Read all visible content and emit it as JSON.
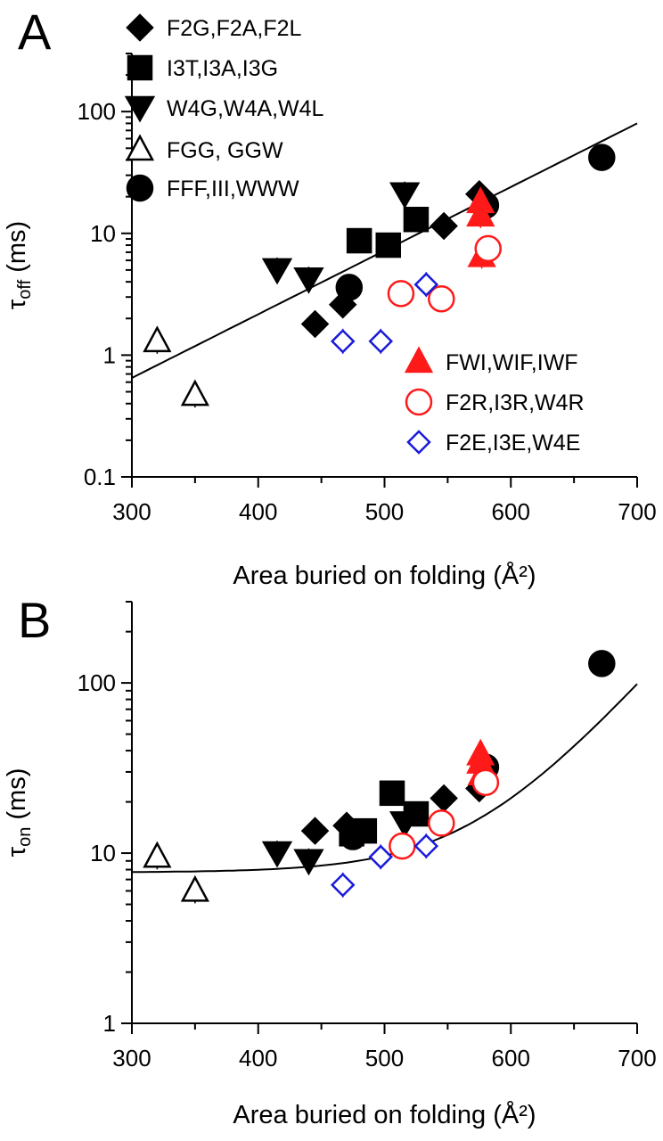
{
  "colors": {
    "black": "#000000",
    "red": "#ff1a1a",
    "blue": "#1a1adb"
  },
  "chart_data": [
    {
      "panel": "A",
      "type": "scatter",
      "xlabel": "Area buried on folding (Å²)",
      "ylabel": "τ",
      "ylabel_sub": "off",
      "ylabel_unit": " (ms)",
      "xlim": [
        300,
        700
      ],
      "ylim": [
        0.1,
        300
      ],
      "yscale": "log",
      "x_ticks": [
        300,
        400,
        500,
        600,
        700
      ],
      "y_ticks": [
        0.1,
        1,
        10,
        100
      ],
      "y_tick_labels": [
        "0.1",
        "1",
        "10",
        "100"
      ],
      "fit": {
        "type": "exponential",
        "x": [
          300,
          700
        ],
        "y": [
          0.65,
          80
        ]
      },
      "series": [
        {
          "name": "F2G,F2A,F2L",
          "marker": "diamond",
          "color": "black",
          "filled": true,
          "points": [
            [
              445,
              1.8
            ],
            [
              467,
              2.6
            ],
            [
              547,
              11.5
            ],
            [
              575,
              21
            ]
          ]
        },
        {
          "name": "I3T,I3A,I3G",
          "marker": "square",
          "color": "black",
          "filled": true,
          "points": [
            [
              480,
              8.7
            ],
            [
              503,
              8.0
            ],
            [
              525,
              13.0
            ]
          ]
        },
        {
          "name": "W4G,W4A,W4L",
          "marker": "triangle-down",
          "color": "black",
          "filled": true,
          "points": [
            [
              415,
              5.0
            ],
            [
              440,
              4.2
            ],
            [
              516,
              21
            ]
          ]
        },
        {
          "name": "FGG, GGW",
          "marker": "triangle-up",
          "color": "black",
          "filled": false,
          "points": [
            [
              320,
              1.3
            ],
            [
              350,
              0.47
            ]
          ]
        },
        {
          "name": "FFF,III,WWW",
          "marker": "circle",
          "color": "black",
          "filled": true,
          "points": [
            [
              472,
              3.6
            ],
            [
              580,
              17
            ],
            [
              672,
              42
            ]
          ]
        },
        {
          "name": "FWI,WIF,IWF",
          "marker": "triangle-up",
          "color": "red",
          "filled": true,
          "points": [
            [
              576,
              18
            ],
            [
              576,
              14
            ],
            [
              577,
              6.5
            ]
          ]
        },
        {
          "name": "F2R,I3R,W4R",
          "marker": "circle",
          "color": "red",
          "filled": false,
          "points": [
            [
              513,
              3.2
            ],
            [
              545,
              2.9
            ],
            [
              582,
              7.5
            ]
          ]
        },
        {
          "name": "F2E,I3E,W4E",
          "marker": "diamond",
          "color": "blue",
          "filled": false,
          "points": [
            [
              467,
              1.3
            ],
            [
              497,
              1.3
            ],
            [
              533,
              3.8
            ]
          ]
        }
      ]
    },
    {
      "panel": "B",
      "type": "scatter",
      "xlabel": "Area buried on folding (Å²)",
      "ylabel": "τ",
      "ylabel_sub": "on",
      "ylabel_unit": " (ms)",
      "xlim": [
        300,
        700
      ],
      "ylim": [
        1,
        300
      ],
      "yscale": "log",
      "x_ticks": [
        300,
        400,
        500,
        600,
        700
      ],
      "y_ticks": [
        1,
        10,
        100
      ],
      "y_tick_labels": [
        "1",
        "10",
        "100"
      ],
      "fit": {
        "type": "exponential-plus-offset",
        "x": [
          300,
          700
        ],
        "offset": 7.7,
        "amp": 0.042,
        "k": 0.0192,
        "x0": 300
      },
      "series": [
        {
          "name": "F2G,F2A,F2L",
          "marker": "diamond",
          "color": "black",
          "filled": true,
          "points": [
            [
              445,
              13.5
            ],
            [
              470,
              14.5
            ],
            [
              547,
              21
            ],
            [
              575,
              24
            ]
          ]
        },
        {
          "name": "I3T,I3A,I3G",
          "marker": "square",
          "color": "black",
          "filled": true,
          "points": [
            [
              474,
              13
            ],
            [
              484,
              13.5
            ],
            [
              506,
              22.5
            ],
            [
              525,
              17
            ]
          ]
        },
        {
          "name": "W4G,W4A,W4L",
          "marker": "triangle-down",
          "color": "black",
          "filled": true,
          "points": [
            [
              415,
              10
            ],
            [
              440,
              9
            ],
            [
              516,
              15
            ]
          ]
        },
        {
          "name": "FGG, GGW",
          "marker": "triangle-up",
          "color": "black",
          "filled": false,
          "points": [
            [
              320,
              9.5
            ],
            [
              350,
              6.0
            ]
          ]
        },
        {
          "name": "FFF,III,WWW",
          "marker": "circle",
          "color": "black",
          "filled": true,
          "points": [
            [
              475,
              12.5
            ],
            [
              580,
              32
            ],
            [
              672,
              130
            ]
          ]
        },
        {
          "name": "FWI,WIF,IWF",
          "marker": "triangle-up",
          "color": "red",
          "filled": true,
          "points": [
            [
              576,
              38
            ],
            [
              576,
              34
            ],
            [
              577,
              29
            ]
          ]
        },
        {
          "name": "F2R,I3R,W4R",
          "marker": "circle",
          "color": "red",
          "filled": false,
          "points": [
            [
              514,
              11
            ],
            [
              545,
              15
            ],
            [
              580,
              26
            ]
          ]
        },
        {
          "name": "F2E,I3E,W4E",
          "marker": "diamond",
          "color": "blue",
          "filled": false,
          "points": [
            [
              467,
              6.5
            ],
            [
              497,
              9.5
            ],
            [
              533,
              11
            ]
          ]
        }
      ]
    }
  ]
}
